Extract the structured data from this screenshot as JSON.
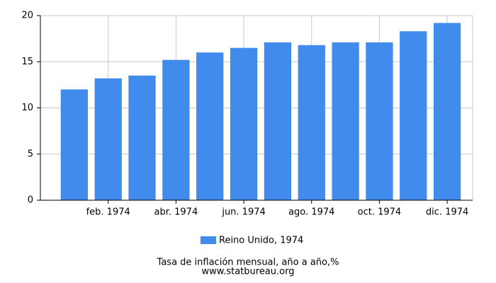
{
  "chart_data": {
    "type": "bar",
    "title": "Tasa de inflación mensual, año a año,%",
    "source": "www.statbureau.org",
    "categories": [
      null,
      "feb. 1974",
      null,
      "abr. 1974",
      null,
      "jun. 1974",
      null,
      "ago. 1974",
      null,
      "oct. 1974",
      null,
      "dic. 1974"
    ],
    "series": [
      {
        "name": "Reino Unido, 1974",
        "color": "#418bed",
        "values": [
          12.0,
          13.2,
          13.5,
          15.2,
          16.0,
          16.5,
          17.1,
          16.8,
          17.1,
          17.1,
          18.3,
          19.2
        ]
      }
    ],
    "ylim": [
      0,
      20
    ],
    "yticks": [
      0,
      5,
      10,
      15,
      20
    ],
    "grid": true
  }
}
